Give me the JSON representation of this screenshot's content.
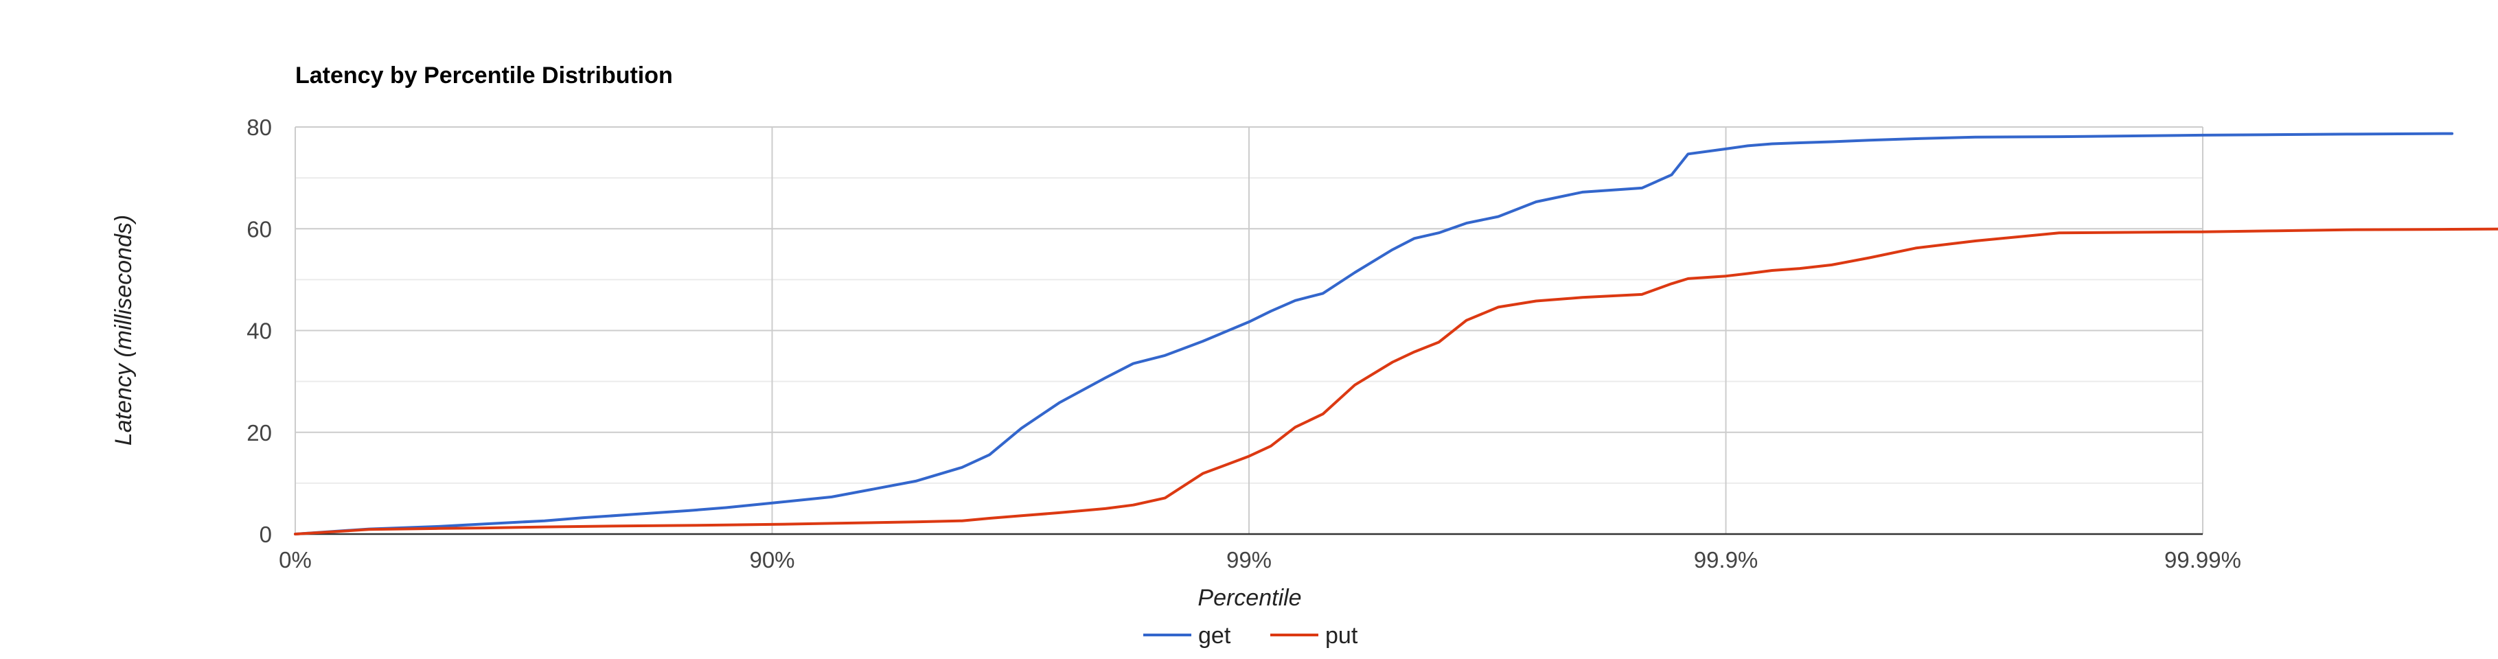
{
  "chart_data": {
    "type": "line",
    "title": "Latency by Percentile Distribution",
    "xlabel": "Percentile",
    "ylabel": "Latency (milliseconds)",
    "x_scale": "log_inverse_percentile",
    "x_ticks": [
      "0%",
      "90%",
      "99%",
      "99.9%",
      "99.99%"
    ],
    "y_ticks": [
      0,
      20,
      40,
      60,
      80
    ],
    "ylim": [
      0,
      80
    ],
    "grid": true,
    "legend_position": "bottom",
    "colors": {
      "get": "#3366cc",
      "put": "#dc3912",
      "grid_major": "#cccccc",
      "grid_minor": "#ebebeb",
      "baseline": "#333333"
    },
    "series": [
      {
        "name": "get",
        "percentile": [
          0,
          30,
          50,
          60,
          70,
          75,
          80,
          85,
          87.5,
          90,
          92.5,
          95,
          96,
          96.5,
          97,
          97.5,
          98,
          98.25,
          98.5,
          98.75,
          99,
          99.1,
          99.2,
          99.3,
          99.4,
          99.5,
          99.55,
          99.6,
          99.65,
          99.7,
          99.75,
          99.8,
          99.85,
          99.87,
          99.88,
          99.9,
          99.91,
          99.92,
          99.93,
          99.94,
          99.95,
          99.96,
          99.97,
          99.98,
          99.99,
          99.993,
          99.995,
          99.997
        ],
        "latency_ms": [
          0,
          1,
          1.5,
          2,
          2.6,
          3.2,
          3.8,
          4.6,
          5.2,
          6.1,
          7.3,
          10.4,
          13.1,
          15.6,
          20.8,
          25.8,
          30.7,
          33.5,
          35.1,
          37.9,
          41.7,
          43.8,
          45.9,
          47.3,
          51.4,
          55.9,
          58.1,
          59.2,
          61.1,
          62.4,
          65.3,
          67.2,
          68.0,
          70.6,
          74.7,
          75.7,
          76.3,
          76.7,
          76.9,
          77.1,
          77.4,
          77.7,
          78.0,
          78.1,
          78.4,
          78.5,
          78.6,
          78.7
        ]
      },
      {
        "name": "put",
        "percentile": [
          0,
          30,
          50,
          60,
          70,
          80,
          85,
          90,
          92.5,
          95,
          96,
          96.5,
          97,
          97.5,
          98,
          98.25,
          98.5,
          98.75,
          99,
          99.1,
          99.2,
          99.3,
          99.4,
          99.5,
          99.55,
          99.6,
          99.65,
          99.7,
          99.75,
          99.8,
          99.85,
          99.87,
          99.88,
          99.9,
          99.91,
          99.92,
          99.93,
          99.94,
          99.95,
          99.96,
          99.97,
          99.98,
          99.99,
          99.993,
          99.995,
          99.997,
          99.998
        ],
        "latency_ms": [
          0,
          0.9,
          1.1,
          1.2,
          1.4,
          1.6,
          1.7,
          1.9,
          2.1,
          2.4,
          2.6,
          3.1,
          3.6,
          4.2,
          5.0,
          5.7,
          7.1,
          11.9,
          15.3,
          17.3,
          21.0,
          23.6,
          29.3,
          33.8,
          35.8,
          37.7,
          42.0,
          44.6,
          45.8,
          46.5,
          47.1,
          49.2,
          50.2,
          50.7,
          51.2,
          51.8,
          52.2,
          52.9,
          54.3,
          56.2,
          57.6,
          59.2,
          59.4,
          59.6,
          59.8,
          59.9,
          60.0
        ]
      }
    ]
  }
}
